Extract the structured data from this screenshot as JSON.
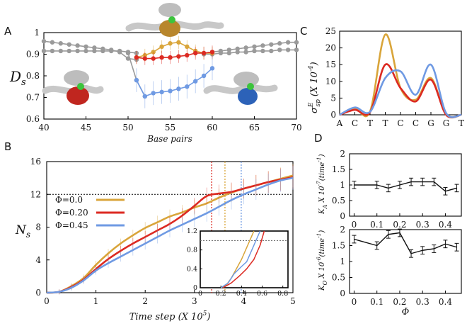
{
  "colors": {
    "phi0": "#d9a53a",
    "phi20": "#dc2a22",
    "phi45": "#6f9ae3",
    "gray": "#9a9a9a",
    "black": "#111111",
    "dna": "#bdbdbd",
    "protein_red": "#c0261f",
    "protein_blue": "#2c62b8",
    "protein_gold": "#b8862c",
    "ligand_green": "#3cc43c"
  },
  "panel_labels": {
    "a": "A",
    "b": "B",
    "c": "C",
    "d": "D"
  },
  "chart_data": [
    {
      "id": "A",
      "type": "line",
      "xlabel": "Base pairs",
      "ylabel": "D",
      "ylabel_sub": "s",
      "xlim": [
        40,
        70
      ],
      "ylim": [
        0.6,
        1.0
      ],
      "xticks": [
        "40",
        "45",
        "50",
        "55",
        "60",
        "65",
        "70"
      ],
      "yticks": [
        "0.6",
        "0.7",
        "0.8",
        "0.9",
        "1"
      ],
      "series": [
        {
          "name": "gray_a",
          "color": "gray",
          "x": [
            40,
            41,
            42,
            43,
            44,
            45,
            46,
            47,
            48,
            49,
            50,
            51
          ],
          "y": [
            0.96,
            0.955,
            0.95,
            0.945,
            0.94,
            0.935,
            0.93,
            0.925,
            0.92,
            0.91,
            0.88,
            0.875
          ]
        },
        {
          "name": "gray_b",
          "color": "gray",
          "x": [
            40,
            41,
            42,
            43,
            44,
            45,
            46,
            47,
            48,
            49,
            50,
            51
          ],
          "y": [
            0.915,
            0.915,
            0.915,
            0.915,
            0.915,
            0.915,
            0.915,
            0.915,
            0.915,
            0.915,
            0.91,
            0.905
          ]
        },
        {
          "name": "gray_c",
          "color": "gray",
          "x": [
            59,
            60,
            61,
            62,
            63,
            64,
            65,
            66,
            67,
            68,
            69,
            70
          ],
          "y": [
            0.905,
            0.91,
            0.915,
            0.92,
            0.925,
            0.93,
            0.935,
            0.94,
            0.945,
            0.95,
            0.955,
            0.955
          ]
        },
        {
          "name": "gray_d",
          "color": "gray",
          "x": [
            59,
            60,
            61,
            62,
            63,
            64,
            65,
            66,
            67,
            68,
            69,
            70
          ],
          "y": [
            0.9,
            0.9,
            0.905,
            0.905,
            0.91,
            0.91,
            0.915,
            0.915,
            0.915,
            0.92,
            0.92,
            0.92
          ]
        },
        {
          "name": "gray_link",
          "color": "gray",
          "x": [
            50,
            51,
            52
          ],
          "y": [
            0.905,
            0.78,
            0.705
          ]
        },
        {
          "name": "Phi=0.0",
          "color": "phi0",
          "x": [
            51,
            52,
            53,
            54,
            55,
            56,
            57,
            58,
            59,
            60
          ],
          "y": [
            0.885,
            0.895,
            0.91,
            0.935,
            0.95,
            0.955,
            0.935,
            0.915,
            0.905,
            0.905
          ]
        },
        {
          "name": "Phi=0.20",
          "color": "phi20",
          "x": [
            51,
            52,
            53,
            54,
            55,
            56,
            57,
            58,
            59,
            60
          ],
          "y": [
            0.885,
            0.88,
            0.88,
            0.885,
            0.885,
            0.89,
            0.895,
            0.905,
            0.905,
            0.91
          ]
        },
        {
          "name": "Phi=0.45",
          "color": "phi45",
          "x": [
            51,
            52,
            53,
            54,
            55,
            56,
            57,
            58,
            59,
            60
          ],
          "y": [
            0.78,
            0.705,
            0.72,
            0.725,
            0.73,
            0.74,
            0.75,
            0.775,
            0.8,
            0.835
          ]
        }
      ],
      "error": {
        "phi45": 0.055,
        "phi20": 0.03,
        "phi0": 0.03
      }
    },
    {
      "id": "B",
      "type": "line",
      "xlabel": "Time step (X 10",
      "xlabel_sup": "5",
      "xlabel_end": ")",
      "ylabel": "N",
      "ylabel_sub": "s",
      "xlim": [
        0,
        5
      ],
      "ylim": [
        0,
        16
      ],
      "xticks": [
        "0",
        "1",
        "2",
        "3",
        "4",
        "5"
      ],
      "yticks": [
        "0",
        "4",
        "8",
        "12",
        "16"
      ],
      "hline": 12,
      "vlines": [
        {
          "x": 3.35,
          "color": "phi20"
        },
        {
          "x": 3.62,
          "color": "phi0"
        },
        {
          "x": 3.95,
          "color": "phi45"
        }
      ],
      "legend": [
        "Φ=0.0",
        "Φ=0.20",
        "Φ=0.45"
      ],
      "series": [
        {
          "name": "Φ=0.0",
          "color": "phi0",
          "x": [
            0,
            0.25,
            0.5,
            0.75,
            1,
            1.25,
            1.5,
            1.75,
            2,
            2.25,
            2.5,
            2.75,
            3,
            3.25,
            3.5,
            3.75,
            4,
            4.25,
            4.5,
            4.75,
            5
          ],
          "y": [
            0,
            0.1,
            0.8,
            1.8,
            3.4,
            4.8,
            6.0,
            7.0,
            7.9,
            8.6,
            9.3,
            9.8,
            10.4,
            10.9,
            11.6,
            12.2,
            12.7,
            13.1,
            13.5,
            13.9,
            14.3
          ]
        },
        {
          "name": "Φ=0.20",
          "color": "phi20",
          "x": [
            0,
            0.25,
            0.5,
            0.75,
            1,
            1.25,
            1.5,
            1.75,
            2,
            2.25,
            2.5,
            2.75,
            3,
            3.25,
            3.5,
            3.75,
            4,
            4.25,
            4.5,
            4.75,
            5
          ],
          "y": [
            0,
            0.1,
            0.7,
            1.6,
            2.9,
            4.1,
            5.1,
            6.0,
            6.8,
            7.6,
            8.4,
            9.4,
            10.6,
            11.8,
            12.1,
            12.3,
            12.7,
            13.1,
            13.5,
            13.8,
            14.1
          ]
        },
        {
          "name": "Φ=0.45",
          "color": "phi45",
          "x": [
            0,
            0.25,
            0.5,
            0.75,
            1,
            1.25,
            1.5,
            1.75,
            2,
            2.25,
            2.5,
            2.75,
            3,
            3.25,
            3.5,
            3.75,
            4,
            4.25,
            4.5,
            4.75,
            5
          ],
          "y": [
            0,
            0.1,
            0.6,
            1.5,
            2.7,
            3.6,
            4.4,
            5.2,
            6.0,
            6.8,
            7.6,
            8.3,
            9.0,
            9.7,
            10.5,
            11.3,
            12.0,
            12.6,
            13.2,
            13.7,
            14.0
          ]
        }
      ],
      "inset": {
        "xlim": [
          0,
          0.85
        ],
        "ylim": [
          0,
          1.2
        ],
        "xticks": [
          "0",
          "0.2",
          "0.4",
          "0.6",
          "0.8"
        ],
        "yticks": [
          "0",
          "0.4",
          "0.8",
          "1.2"
        ],
        "hline": 1.0,
        "series": [
          {
            "color": "phi0",
            "x": [
              0.2,
              0.25,
              0.3,
              0.35,
              0.4,
              0.45,
              0.5,
              0.52
            ],
            "y": [
              0,
              0.05,
              0.2,
              0.4,
              0.6,
              0.85,
              1.1,
              1.2
            ]
          },
          {
            "color": "phi45",
            "x": [
              0.2,
              0.27,
              0.33,
              0.4,
              0.45,
              0.5,
              0.55,
              0.58
            ],
            "y": [
              0,
              0.1,
              0.3,
              0.45,
              0.55,
              0.8,
              1.05,
              1.2
            ]
          },
          {
            "color": "phi20",
            "x": [
              0.22,
              0.3,
              0.38,
              0.45,
              0.52,
              0.58,
              0.62
            ],
            "y": [
              0,
              0.1,
              0.25,
              0.4,
              0.6,
              0.9,
              1.2
            ]
          }
        ]
      }
    },
    {
      "id": "C",
      "type": "line",
      "ylabel": "σ",
      "ylabel_sub": "sp",
      "ylabel_sup": "E",
      "ylabel_unit": "(X 10",
      "ylabel_unit_sup": "-4",
      "ylabel_unit_end": ")",
      "categories": [
        "A",
        "C",
        "T",
        "T",
        "C",
        "C",
        "G",
        "G",
        "T"
      ],
      "ylim": [
        0,
        25
      ],
      "yticks": [
        "0",
        "5",
        "10",
        "15",
        "20",
        "25"
      ],
      "series": [
        {
          "name": "Φ=0.0",
          "color": "phi0",
          "values": [
            0,
            1.8,
            1.0,
            24.0,
            8.0,
            4.5,
            11.0,
            0.0,
            0
          ]
        },
        {
          "name": "Φ=0.20",
          "color": "phi20",
          "values": [
            0,
            1.5,
            0.8,
            15.0,
            8.0,
            4.0,
            10.5,
            0.0,
            0
          ]
        },
        {
          "name": "Φ=0.45",
          "color": "phi45",
          "values": [
            0,
            2.2,
            0.9,
            11.0,
            13.0,
            6.0,
            15.0,
            0.5,
            0
          ]
        }
      ]
    },
    {
      "id": "D_top",
      "type": "line",
      "ylabel": "K",
      "ylabel_sub": "A",
      "ylabel_unit": " X 10",
      "ylabel_unit_sup": "-7",
      "ylabel_unit_end": "(time",
      "ylabel_unit_end_sup": "-1",
      "ylabel_close": ")",
      "xlim": [
        -0.02,
        0.47
      ],
      "ylim": [
        0,
        2
      ],
      "yticks": [
        "0",
        "0.5",
        "1",
        "1.5",
        "2"
      ],
      "xticks": [
        "0",
        "0.1",
        "0.2",
        "0.3",
        "0.4"
      ],
      "x": [
        0,
        0.1,
        0.15,
        0.2,
        0.25,
        0.3,
        0.35,
        0.4,
        0.45
      ],
      "y": [
        1.0,
        1.0,
        0.9,
        1.0,
        1.1,
        1.1,
        1.1,
        0.8,
        0.9
      ],
      "err": 0.12
    },
    {
      "id": "D_bottom",
      "type": "line",
      "xlabel": "Φ",
      "ylabel": "K",
      "ylabel_sub": "O",
      "ylabel_unit": " X 10",
      "ylabel_unit_sup": "-6",
      "ylabel_unit_end": "(time",
      "ylabel_unit_end_sup": "-1",
      "ylabel_close": ")",
      "xlim": [
        -0.02,
        0.47
      ],
      "ylim": [
        0,
        2
      ],
      "yticks": [
        "0",
        "0.5",
        "1",
        "1.5",
        "2"
      ],
      "xticks": [
        "0",
        "0.1",
        "0.2",
        "0.3",
        "0.4"
      ],
      "x": [
        0,
        0.1,
        0.15,
        0.2,
        0.25,
        0.3,
        0.35,
        0.4,
        0.45
      ],
      "y": [
        1.7,
        1.5,
        1.85,
        1.9,
        1.25,
        1.35,
        1.4,
        1.55,
        1.45
      ],
      "err": 0.12
    }
  ]
}
